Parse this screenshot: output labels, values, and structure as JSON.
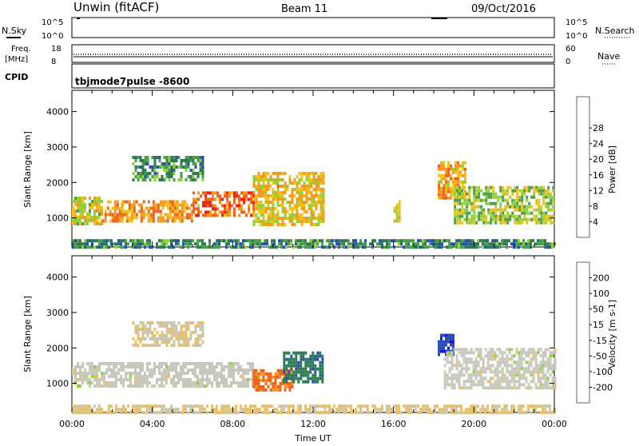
{
  "header": {
    "title": "Unwin (fitACF)",
    "beam": "Beam 11",
    "date": "09/Oct/2016"
  },
  "status_panels": {
    "nsky_label": "N.Sky",
    "nsearch_label": "N.Search",
    "nsky_ticks": [
      "10^5",
      "10^0"
    ],
    "nsky_right_ticks": [
      "10^5",
      "10^0"
    ],
    "freq_label": [
      "Freq.",
      "[MHz]"
    ],
    "freq_ticks": [
      "18",
      "8"
    ],
    "nave_label": "Nave",
    "nave_ticks": [
      "60",
      "0"
    ],
    "cpid_label": "CPID",
    "cpid_value": "tbjmode7pulse  -8600"
  },
  "colors": {
    "power": [
      "#1a1adb",
      "#2a4fb0",
      "#2f7a55",
      "#4aa04a",
      "#8fd33a",
      "#f2c21a",
      "#f59a1f",
      "#f0631e",
      "#e62818"
    ],
    "velocity": [
      "#1a1adb",
      "#2a4fb0",
      "#2f7a55",
      "#8fd33a",
      "#c8c8bc",
      "#e8c068",
      "#f59a1f",
      "#f0631e",
      "#e62818"
    ]
  },
  "chart_data": [
    {
      "type": "heatmap",
      "name": "power",
      "xlabel": "",
      "ylabel": "Slant Range [km]",
      "xlim": [
        "00:00",
        "24:00"
      ],
      "ylim": [
        180,
        4600
      ],
      "yticks": [
        1000,
        2000,
        3000,
        4000
      ],
      "colorbar": {
        "label": "Power [dB]",
        "ticks": [
          "4",
          "8",
          "12",
          "16",
          "20",
          "24",
          "28"
        ],
        "range": [
          0,
          32
        ]
      },
      "regions": [
        {
          "t": [
            0.0,
            1.5
          ],
          "r": [
            800,
            1600
          ],
          "v": 18
        },
        {
          "t": [
            1.5,
            6.0
          ],
          "r": [
            900,
            1500
          ],
          "v": 23
        },
        {
          "t": [
            6.0,
            9.0
          ],
          "r": [
            1050,
            1750
          ],
          "v": 26
        },
        {
          "t": [
            9.0,
            12.5
          ],
          "r": [
            800,
            2300
          ],
          "v": 20
        },
        {
          "t": [
            3.0,
            6.5
          ],
          "r": [
            2100,
            2750
          ],
          "v": 11
        },
        {
          "t": [
            16.0,
            16.3
          ],
          "r": [
            900,
            1500
          ],
          "v": 18
        },
        {
          "t": [
            18.2,
            19.6
          ],
          "r": [
            1600,
            2600
          ],
          "v": 22
        },
        {
          "t": [
            19.0,
            24.0
          ],
          "r": [
            900,
            1900
          ],
          "v": 16
        },
        {
          "t": [
            0.0,
            24.0
          ],
          "r": [
            200,
            400
          ],
          "v": 10
        }
      ]
    },
    {
      "type": "heatmap",
      "name": "velocity",
      "xlabel": "Time UT",
      "ylabel": "Slant Range [km]",
      "xlim": [
        "00:00",
        "24:00"
      ],
      "ylim": [
        180,
        4600
      ],
      "xticks": [
        "00:00",
        "04:00",
        "08:00",
        "12:00",
        "16:00",
        "20:00",
        "00:00"
      ],
      "yticks": [
        1000,
        2000,
        3000,
        4000
      ],
      "colorbar": {
        "label": "Velocity [m s-1]",
        "ticks": [
          "200",
          "100",
          "50",
          "15",
          "-15",
          "-50",
          "-100",
          "-200"
        ],
        "range": [
          -250,
          250
        ]
      },
      "regions": [
        {
          "t": [
            0.0,
            9.0
          ],
          "r": [
            900,
            1600
          ],
          "v": 0
        },
        {
          "t": [
            3.0,
            6.5
          ],
          "r": [
            2100,
            2750
          ],
          "v": -30
        },
        {
          "t": [
            9.0,
            11.0
          ],
          "r": [
            800,
            1400
          ],
          "v": -150
        },
        {
          "t": [
            10.5,
            12.5
          ],
          "r": [
            1000,
            1900
          ],
          "v": 120
        },
        {
          "t": [
            18.2,
            19.0
          ],
          "r": [
            1800,
            2400
          ],
          "v": 180
        },
        {
          "t": [
            18.5,
            24.0
          ],
          "r": [
            900,
            2000
          ],
          "v": 0
        },
        {
          "t": [
            0.0,
            24.0
          ],
          "r": [
            200,
            400
          ],
          "v": -40
        }
      ]
    }
  ]
}
